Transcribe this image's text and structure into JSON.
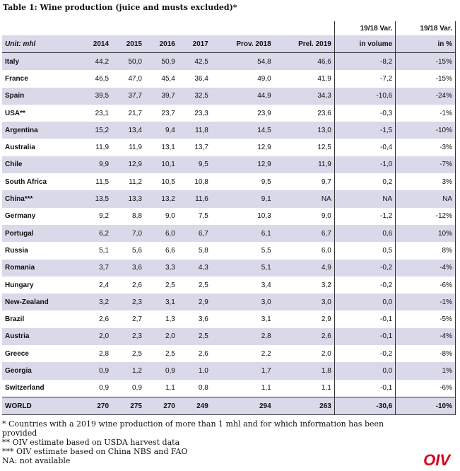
{
  "title": "Table 1: Wine production (juice and musts excluded)*",
  "header": {
    "var_top_1": "19/18 Var.",
    "var_top_2": "19/18 Var.",
    "unit": "Unit: mhl",
    "col_2014": "2014",
    "col_2015": "2015",
    "col_2016": "2016",
    "col_2017": "2017",
    "col_2018": "Prov. 2018",
    "col_2019": "Prel.  2019",
    "var_vol": "in volume",
    "var_pct": "in %"
  },
  "rows": [
    {
      "country": "Italy",
      "v": [
        "44,2",
        "50,0",
        "50,9",
        "42,5",
        "54,8",
        "46,6",
        "-8,2",
        "-15%"
      ]
    },
    {
      "country": "France",
      "v": [
        "46,5",
        "47,0",
        "45,4",
        "36,4",
        "49,0",
        "41,9",
        "-7,2",
        "-15%"
      ]
    },
    {
      "country": "Spain",
      "v": [
        "39,5",
        "37,7",
        "39,7",
        "32,5",
        "44,9",
        "34,3",
        "-10,6",
        "-24%"
      ]
    },
    {
      "country": "USA**",
      "v": [
        "23,1",
        "21,7",
        "23,7",
        "23,3",
        "23,9",
        "23,6",
        "-0,3",
        "-1%"
      ]
    },
    {
      "country": "Argentina",
      "v": [
        "15,2",
        "13,4",
        "9,4",
        "11,8",
        "14,5",
        "13,0",
        "-1,5",
        "-10%"
      ]
    },
    {
      "country": "Australia",
      "v": [
        "11,9",
        "11,9",
        "13,1",
        "13,7",
        "12,9",
        "12,5",
        "-0,4",
        "-3%"
      ]
    },
    {
      "country": "Chile",
      "v": [
        "9,9",
        "12,9",
        "10,1",
        "9,5",
        "12,9",
        "11,9",
        "-1,0",
        "-7%"
      ]
    },
    {
      "country": "South Africa",
      "v": [
        "11,5",
        "11,2",
        "10,5",
        "10,8",
        "9,5",
        "9,7",
        "0,2",
        "3%"
      ]
    },
    {
      "country": "China***",
      "v": [
        "13,5",
        "13,3",
        "13,2",
        "11,6",
        "9,1",
        "NA",
        "NA",
        "NA"
      ]
    },
    {
      "country": "Germany",
      "v": [
        "9,2",
        "8,8",
        "9,0",
        "7,5",
        "10,3",
        "9,0",
        "-1,2",
        "-12%"
      ]
    },
    {
      "country": "Portugal",
      "v": [
        "6,2",
        "7,0",
        "6,0",
        "6,7",
        "6,1",
        "6,7",
        "0,6",
        "10%"
      ]
    },
    {
      "country": "Russia",
      "v": [
        "5,1",
        "5,6",
        "6,6",
        "5,8",
        "5,5",
        "6,0",
        "0,5",
        "8%"
      ]
    },
    {
      "country": "Romania",
      "v": [
        "3,7",
        "3,6",
        "3,3",
        "4,3",
        "5,1",
        "4,9",
        "-0,2",
        "-4%"
      ]
    },
    {
      "country": "Hungary",
      "v": [
        "2,4",
        "2,6",
        "2,5",
        "2,5",
        "3,4",
        "3,2",
        "-0,2",
        "-6%"
      ]
    },
    {
      "country": "New-Zealand",
      "v": [
        "3,2",
        "2,3",
        "3,1",
        "2,9",
        "3,0",
        "3,0",
        "0,0",
        "-1%"
      ]
    },
    {
      "country": "Brazil",
      "v": [
        "2,6",
        "2,7",
        "1,3",
        "3,6",
        "3,1",
        "2,9",
        "-0,1",
        "-5%"
      ]
    },
    {
      "country": "Austria",
      "v": [
        "2,0",
        "2,3",
        "2,0",
        "2,5",
        "2,8",
        "2,6",
        "-0,1",
        "-4%"
      ]
    },
    {
      "country": "Greece",
      "v": [
        "2,8",
        "2,5",
        "2,5",
        "2,6",
        "2,2",
        "2,0",
        "-0,2",
        "-8%"
      ]
    },
    {
      "country": "Georgia",
      "v": [
        "0,9",
        "1,2",
        "0,9",
        "1,0",
        "1,7",
        "1,8",
        "0,0",
        "1%"
      ]
    },
    {
      "country": "Switzerland",
      "v": [
        "0,9",
        "0,9",
        "1,1",
        "0,8",
        "1,1",
        "1,1",
        "-0,1",
        "-6%"
      ]
    }
  ],
  "world": {
    "country": "WORLD",
    "v": [
      "270",
      "275",
      "270",
      "249",
      "294",
      "263",
      "-30,6",
      "-10%"
    ]
  },
  "notes": [
    "* Countries with a 2019 wine production of more than 1 mhl and for which information has been provided",
    "** OIV estimate based on USDA harvest data",
    "*** OIV estimate based on China NBS and FAO",
    "NA: not available"
  ],
  "logo": "OIV",
  "colors": {
    "row_shade": "#d9d9e9",
    "logo_red": "#d9001b"
  }
}
